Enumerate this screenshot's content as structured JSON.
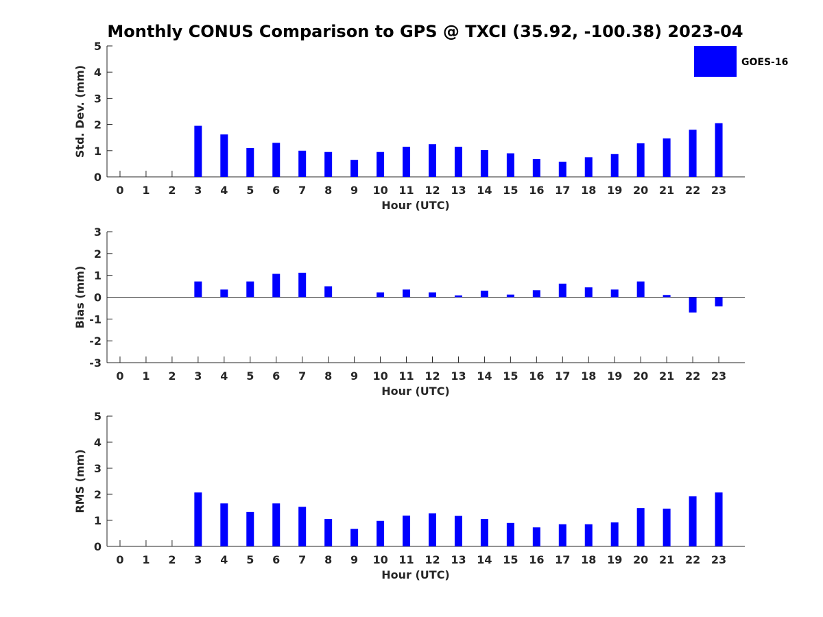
{
  "title": "Monthly CONUS Comparison to GPS @ TXCI (35.92, -100.38) 2023-04",
  "legend": {
    "label": "GOES-16",
    "color": "#0000ff"
  },
  "colors": {
    "bar": "#0000ff",
    "axis": "#262626",
    "background": "#ffffff"
  },
  "chart_data": [
    {
      "type": "bar",
      "id": "std",
      "title": "",
      "xlabel": "Hour (UTC)",
      "ylabel": "Std. Dev. (mm)",
      "ylim": [
        0,
        5
      ],
      "yticks": [
        0,
        1,
        2,
        3,
        4,
        5
      ],
      "categories": [
        0,
        1,
        2,
        3,
        4,
        5,
        6,
        7,
        8,
        9,
        10,
        11,
        12,
        13,
        14,
        15,
        16,
        17,
        18,
        19,
        20,
        21,
        22,
        23
      ],
      "series": [
        {
          "name": "GOES-16",
          "values": [
            null,
            null,
            null,
            1.95,
            1.62,
            1.1,
            1.3,
            1.0,
            0.95,
            0.65,
            0.95,
            1.15,
            1.25,
            1.15,
            1.02,
            0.9,
            0.68,
            0.58,
            0.75,
            0.87,
            1.28,
            1.47,
            1.8,
            2.05
          ]
        }
      ]
    },
    {
      "type": "bar",
      "id": "bias",
      "title": "",
      "xlabel": "Hour (UTC)",
      "ylabel": "Bias (mm)",
      "ylim": [
        -3,
        3
      ],
      "yticks": [
        -3,
        -2,
        -1,
        0,
        1,
        2,
        3
      ],
      "categories": [
        0,
        1,
        2,
        3,
        4,
        5,
        6,
        7,
        8,
        9,
        10,
        11,
        12,
        13,
        14,
        15,
        16,
        17,
        18,
        19,
        20,
        21,
        22,
        23
      ],
      "series": [
        {
          "name": "GOES-16",
          "values": [
            null,
            null,
            null,
            0.72,
            0.35,
            0.72,
            1.07,
            1.12,
            0.5,
            null,
            0.22,
            0.35,
            0.22,
            0.08,
            0.3,
            0.12,
            0.32,
            0.62,
            0.45,
            0.35,
            0.72,
            0.1,
            -0.7,
            -0.42
          ]
        }
      ]
    },
    {
      "type": "bar",
      "id": "rms",
      "title": "",
      "xlabel": "Hour (UTC)",
      "ylabel": "RMS (mm)",
      "ylim": [
        0,
        5
      ],
      "yticks": [
        0,
        1,
        2,
        3,
        4,
        5
      ],
      "categories": [
        0,
        1,
        2,
        3,
        4,
        5,
        6,
        7,
        8,
        9,
        10,
        11,
        12,
        13,
        14,
        15,
        16,
        17,
        18,
        19,
        20,
        21,
        22,
        23
      ],
      "series": [
        {
          "name": "GOES-16",
          "values": [
            null,
            null,
            null,
            2.07,
            1.65,
            1.32,
            1.65,
            1.52,
            1.05,
            0.67,
            0.98,
            1.18,
            1.27,
            1.17,
            1.05,
            0.9,
            0.73,
            0.85,
            0.85,
            0.92,
            1.47,
            1.45,
            1.92,
            2.07
          ]
        }
      ]
    }
  ]
}
